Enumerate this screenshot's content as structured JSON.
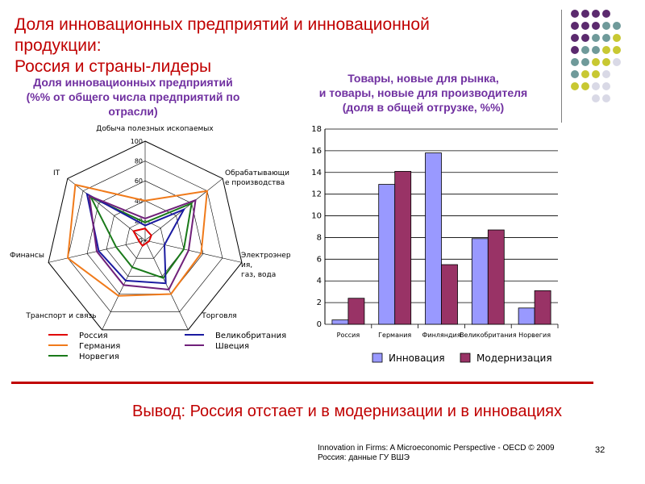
{
  "slide": {
    "title_lines": [
      "Доля инновационных предприятий и инновационной",
      "продукции:",
      "Россия и страны-лидеры"
    ],
    "conclusion": "Вывод:  Россия отстает и в модернизации и в инновациях",
    "source_lines": [
      "Innovation in Firms: A Microeconomic Perspective  - OECD © 2009",
      "Россия: данные ГУ ВШЭ"
    ],
    "page_number": "32",
    "accent_color": "#c00000",
    "decor_dot_colors": [
      "#5b2a6e",
      "#6f9a9a",
      "#c8c832",
      "#d9d9e6"
    ]
  },
  "radar": {
    "title_lines": [
      "Доля инновационных предприятий",
      "(%% от общего числа предприятий по",
      "отрасли)"
    ],
    "axis_labels": [
      [
        "Добыча полезных ископаемых"
      ],
      [
        "Обрабатывающи",
        "е производства"
      ],
      [
        "Электроэнерг",
        "ия,",
        "газ, вода"
      ],
      [
        "Торговля"
      ],
      [
        "Транспорт и связь"
      ],
      [
        "Финансы"
      ],
      [
        "IT"
      ]
    ],
    "tick_labels": [
      "0",
      "20",
      "40",
      "60",
      "80",
      "100"
    ]
  },
  "bars": {
    "title_lines": [
      "Товары, новые для рынка,",
      "и товары, новые для производителя",
      "(доля в общей отгрузке, %%)"
    ],
    "y_ticks": [
      "0",
      "2",
      "4",
      "6",
      "8",
      "10",
      "12",
      "14",
      "16",
      "18"
    ],
    "legend": [
      "Инновация",
      "Модернизация"
    ]
  },
  "chart_data": [
    {
      "type": "radar",
      "categories": [
        "Добыча полезных ископаемых",
        "Обрабатывающие производства",
        "Электроэнергия, газ, вода",
        "Торговля",
        "Транспорт и связь",
        "Финансы",
        "IT"
      ],
      "rlim": [
        0,
        100
      ],
      "series": [
        {
          "name": "Россия",
          "color": "#e00000",
          "values": [
            12,
            8,
            4,
            3,
            6,
            6,
            15
          ]
        },
        {
          "name": "Германия",
          "color": "#f07a1a",
          "values": [
            40,
            80,
            58,
            60,
            62,
            80,
            90
          ]
        },
        {
          "name": "Норвегия",
          "color": "#1a7a1a",
          "values": [
            18,
            60,
            40,
            42,
            30,
            30,
            70
          ]
        },
        {
          "name": "Великобритания",
          "color": "#1a1aa0",
          "values": [
            15,
            50,
            20,
            48,
            45,
            48,
            75
          ]
        },
        {
          "name": "Швеция",
          "color": "#70207a",
          "values": [
            22,
            65,
            45,
            55,
            50,
            50,
            72
          ]
        }
      ]
    },
    {
      "type": "bar",
      "categories": [
        "Россия",
        "Германия",
        "Финляндия",
        "Великобритания",
        "Норвегия"
      ],
      "ylim": [
        0,
        18
      ],
      "series": [
        {
          "name": "Инновация",
          "color": "#9999ff",
          "values": [
            0.4,
            12.9,
            15.8,
            7.9,
            1.5
          ]
        },
        {
          "name": "Модернизация",
          "color": "#993366",
          "values": [
            2.4,
            14.1,
            5.5,
            8.7,
            3.1
          ]
        }
      ]
    }
  ]
}
